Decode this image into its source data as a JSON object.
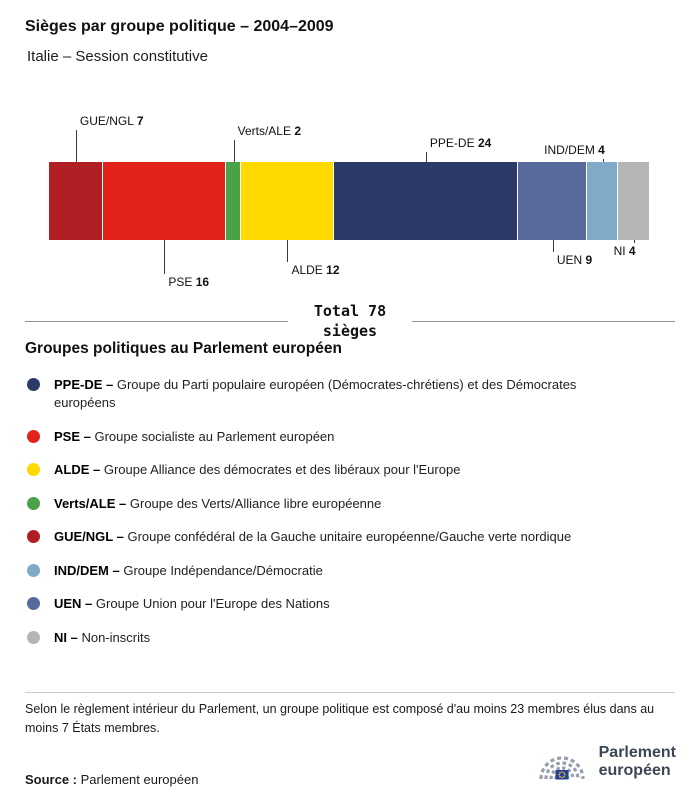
{
  "header": {
    "title": "Sièges par groupe politique – 2004–2009",
    "subtitle": "Italie – Session constitutive"
  },
  "chart_data": {
    "type": "bar",
    "subtype": "horizontal-stacked",
    "total_seats": 78,
    "total_label": {
      "line1": "Total 78",
      "line2": "sièges"
    },
    "segments": [
      {
        "name": "GUE/NGL",
        "value": 7,
        "color": "#b01f24",
        "label_side": "above",
        "label_offset": 32,
        "label_align": "left"
      },
      {
        "name": "PSE",
        "value": 16,
        "color": "#e2231a",
        "label_side": "below",
        "label_offset": 34,
        "label_align": "left"
      },
      {
        "name": "Verts/ALE",
        "value": 2,
        "color": "#4aa147",
        "label_side": "above",
        "label_offset": 22,
        "label_align": "left"
      },
      {
        "name": "ALDE",
        "value": 12,
        "color": "#ffd900",
        "label_side": "below",
        "label_offset": 22,
        "label_align": "left"
      },
      {
        "name": "PPE-DE",
        "value": 24,
        "color": "#2b3a67",
        "label_side": "above",
        "label_offset": 10,
        "label_align": "left"
      },
      {
        "name": "UEN",
        "value": 9,
        "color": "#58699b",
        "label_side": "below",
        "label_offset": 12,
        "label_align": "left"
      },
      {
        "name": "IND/DEM",
        "value": 4,
        "color": "#7fabc9",
        "label_side": "above",
        "label_offset": 3,
        "label_align": "right"
      },
      {
        "name": "NI",
        "value": 4,
        "color": "#b5b5b5",
        "label_side": "below",
        "label_offset": 3,
        "label_align": "right"
      }
    ]
  },
  "legend": {
    "title": "Groupes politiques au Parlement européen",
    "items": [
      {
        "abbr": "PPE-DE –",
        "desc": "Groupe du Parti populaire européen (Démocrates-chrétiens) et des Démocrates européens",
        "color": "#2b3a67"
      },
      {
        "abbr": "PSE –",
        "desc": "Groupe socialiste au Parlement européen",
        "color": "#e2231a"
      },
      {
        "abbr": "ALDE –",
        "desc": "Groupe Alliance des démocrates et des libéraux pour l'Europe",
        "color": "#ffd900"
      },
      {
        "abbr": "Verts/ALE –",
        "desc": "Groupe des Verts/Alliance libre européenne",
        "color": "#4aa147"
      },
      {
        "abbr": "GUE/NGL –",
        "desc": "Groupe confédéral de la Gauche unitaire européenne/Gauche verte nordique",
        "color": "#b01f24"
      },
      {
        "abbr": "IND/DEM –",
        "desc": "Groupe Indépendance/Démocratie",
        "color": "#7fabc9"
      },
      {
        "abbr": "UEN –",
        "desc": "Groupe Union pour l'Europe des Nations",
        "color": "#58699b"
      },
      {
        "abbr": "NI –",
        "desc": "Non-inscrits",
        "color": "#b5b5b5"
      }
    ]
  },
  "footer": {
    "note": "Selon le règlement intérieur du Parlement, un groupe politique est composé d'au moins 23 membres élus dans au moins 7 États membres.",
    "source_label": "Source :",
    "source_text": "Parlement européen",
    "logo": {
      "line1": "Parlement",
      "line2": "européen"
    }
  }
}
